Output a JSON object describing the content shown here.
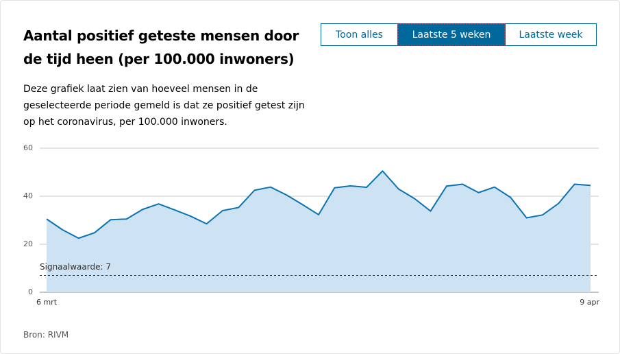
{
  "header": {
    "title": "Aantal positief geteste mensen door de tijd heen (per 100.000 inwoners)",
    "description": "Deze grafiek laat zien van hoeveel mensen in de geselecteerde periode gemeld is dat ze positief getest zijn op het coronavirus, per 100.000 inwoners."
  },
  "buttons": [
    {
      "label": "Toon alles",
      "active": false
    },
    {
      "label": "Laatste 5 weken",
      "active": true
    },
    {
      "label": "Laatste week",
      "active": false
    }
  ],
  "chart_data": {
    "type": "area",
    "categories": [
      "6 mrt",
      null,
      null,
      null,
      null,
      null,
      null,
      null,
      null,
      null,
      null,
      null,
      null,
      null,
      null,
      null,
      null,
      null,
      null,
      null,
      null,
      null,
      null,
      null,
      null,
      null,
      null,
      null,
      null,
      null,
      null,
      null,
      null,
      null,
      "9 apr"
    ],
    "values": [
      30.5,
      26,
      22.5,
      24.8,
      30.2,
      30.5,
      34.5,
      36.8,
      34.3,
      31.7,
      28.5,
      34,
      35.3,
      42.5,
      43.8,
      40.5,
      36.5,
      32.3,
      43.5,
      44.3,
      43.7,
      50.5,
      43,
      39,
      33.8,
      44.2,
      45,
      41.5,
      43.8,
      39.5,
      31,
      32.2,
      37,
      45,
      44.5
    ],
    "color": "#0a73b3",
    "fill": "#cde2f3",
    "ylim": [
      0,
      60
    ],
    "yticks": [
      0,
      20,
      40,
      60
    ],
    "grid": true,
    "threshold": {
      "value": 7,
      "label": "Signaalwaarde: 7"
    }
  },
  "source": "Bron: RIVM"
}
